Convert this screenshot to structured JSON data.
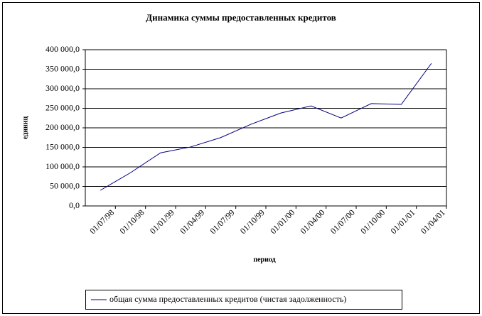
{
  "chart_data": {
    "type": "line",
    "title": "Динамика суммы предоставленных кредитов",
    "x_label": "период",
    "y_label": "единиц",
    "categories": [
      "01/07/98",
      "01/10/98",
      "01/01/99",
      "01/04/99",
      "01/07/99",
      "01/10/99",
      "01/01/00",
      "01/04/00",
      "01/07/00",
      "01/10/00",
      "01/01/01",
      "01/04/01"
    ],
    "series": [
      {
        "name": "общая сумма предоставленных кредитов (чистая задолженность)",
        "color": "#000080",
        "values": [
          40000,
          85000,
          136000,
          151000,
          175000,
          209000,
          238000,
          256000,
          225000,
          262000,
          260000,
          365000
        ]
      }
    ],
    "ylim": [
      0,
      400000
    ],
    "yticks": [
      {
        "value": 0,
        "label": "0,0"
      },
      {
        "value": 50000,
        "label": "50 000,0"
      },
      {
        "value": 100000,
        "label": "100 000,0"
      },
      {
        "value": 150000,
        "label": "150 000,0"
      },
      {
        "value": 200000,
        "label": "200 000,0"
      },
      {
        "value": 250000,
        "label": "250 000,0"
      },
      {
        "value": 300000,
        "label": "300 000,0"
      },
      {
        "value": 350000,
        "label": "350 000,0"
      },
      {
        "value": 400000,
        "label": "400 000,0"
      }
    ],
    "grid": true
  }
}
